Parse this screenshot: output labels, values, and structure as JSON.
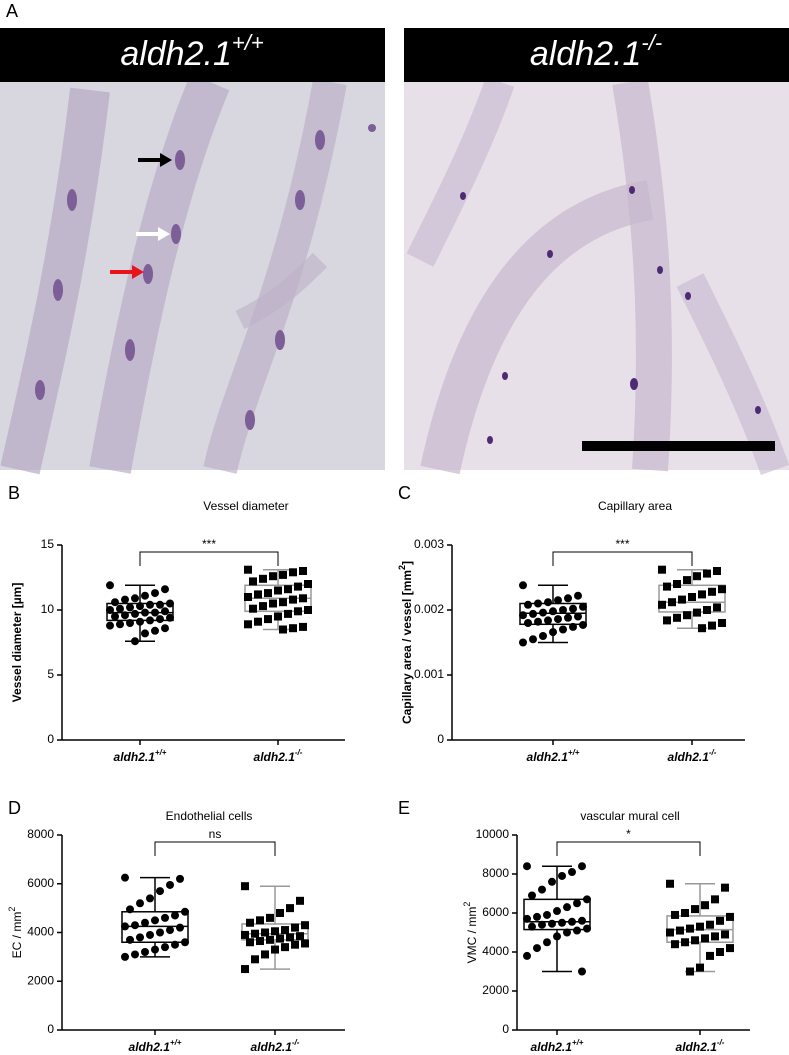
{
  "figure": {
    "panel_a": {
      "label": "A",
      "left_header": "aldh2.1",
      "left_header_sup": "+/+",
      "right_header": "aldh2.1",
      "right_header_sup": "-/-"
    }
  },
  "chart_data": [
    {
      "type": "box",
      "panel": "B",
      "title": "Vessel diameter",
      "ylabel": "Vessel diameter [µm]",
      "ylim": [
        0,
        15
      ],
      "yticks": [
        0,
        5,
        10,
        15
      ],
      "categories": [
        "aldh2.1",
        "aldh2.1"
      ],
      "category_sups": [
        "+/+",
        "-/-"
      ],
      "significance": "***",
      "series": [
        {
          "color": "#000000",
          "box_color": "#000000",
          "marker": "circle",
          "whisker_low": 7.6,
          "q1": 9.2,
          "median": 9.8,
          "q3": 10.5,
          "whisker_high": 11.9,
          "values": [
            11.9,
            11.6,
            11.3,
            11.1,
            10.9,
            10.8,
            10.6,
            10.5,
            10.4,
            10.4,
            10.3,
            10.2,
            10.1,
            10.0,
            9.9,
            9.8,
            9.8,
            9.7,
            9.6,
            9.5,
            9.4,
            9.3,
            9.2,
            9.1,
            9.0,
            8.9,
            8.8,
            8.6,
            8.4,
            8.2,
            7.6
          ]
        },
        {
          "color": "#000000",
          "box_color": "#999999",
          "marker": "square",
          "whisker_low": 8.5,
          "q1": 9.9,
          "median": 10.9,
          "q3": 11.9,
          "whisker_high": 13.1,
          "values": [
            13.1,
            13.0,
            12.9,
            12.7,
            12.6,
            12.4,
            12.2,
            12.0,
            11.8,
            11.6,
            11.5,
            11.3,
            11.2,
            11.0,
            10.9,
            10.8,
            10.6,
            10.5,
            10.3,
            10.1,
            10.0,
            9.9,
            9.7,
            9.5,
            9.3,
            9.1,
            8.9,
            8.7,
            8.6,
            8.5
          ]
        }
      ]
    },
    {
      "type": "box",
      "panel": "C",
      "title": "Capillary area",
      "ylabel": "Capillary area / vessel [mm",
      "ylabel_sup": "2",
      "ylabel_tail": "]",
      "ylim": [
        0,
        0.003
      ],
      "yticks": [
        0,
        0.001,
        0.002,
        0.003
      ],
      "categories": [
        "aldh2.1",
        "aldh2.1"
      ],
      "category_sups": [
        "+/+",
        "-/-"
      ],
      "significance": "***",
      "series": [
        {
          "color": "#000000",
          "box_color": "#000000",
          "marker": "circle",
          "whisker_low": 0.0015,
          "q1": 0.00178,
          "median": 0.00195,
          "q3": 0.0021,
          "whisker_high": 0.00238,
          "values": [
            0.00238,
            0.00222,
            0.00218,
            0.00215,
            0.00212,
            0.0021,
            0.00208,
            0.00205,
            0.00202,
            0.002,
            0.00198,
            0.00196,
            0.00194,
            0.00192,
            0.0019,
            0.00188,
            0.00186,
            0.00184,
            0.00182,
            0.0018,
            0.00177,
            0.00174,
            0.0017,
            0.00166,
            0.0016,
            0.00155,
            0.0015
          ]
        },
        {
          "color": "#000000",
          "box_color": "#999999",
          "marker": "square",
          "whisker_low": 0.00172,
          "q1": 0.00197,
          "median": 0.00212,
          "q3": 0.00238,
          "whisker_high": 0.00262,
          "values": [
            0.00262,
            0.0026,
            0.00256,
            0.00252,
            0.00246,
            0.0024,
            0.00236,
            0.00232,
            0.00228,
            0.00224,
            0.0022,
            0.00216,
            0.00212,
            0.00208,
            0.00204,
            0.002,
            0.00196,
            0.00192,
            0.00188,
            0.00184,
            0.0018,
            0.00176,
            0.00172
          ]
        }
      ]
    },
    {
      "type": "box",
      "panel": "D",
      "title": "Endothelial cells",
      "ylabel": "EC / mm",
      "ylabel_sup": "2",
      "ylim": [
        0,
        8000
      ],
      "yticks": [
        0,
        2000,
        4000,
        6000,
        8000
      ],
      "categories": [
        "aldh2.1",
        "aldh2.1"
      ],
      "category_sups": [
        "+/+",
        "-/-"
      ],
      "significance": "ns",
      "series": [
        {
          "color": "#000000",
          "box_color": "#000000",
          "marker": "circle",
          "whisker_low": 3000,
          "q1": 3600,
          "median": 4250,
          "q3": 4850,
          "whisker_high": 6250,
          "values": [
            6250,
            6200,
            5950,
            5700,
            5400,
            5200,
            4950,
            4850,
            4700,
            4600,
            4500,
            4400,
            4300,
            4250,
            4200,
            4100,
            4000,
            3900,
            3800,
            3700,
            3600,
            3500,
            3400,
            3300,
            3200,
            3100,
            3000
          ]
        },
        {
          "color": "#000000",
          "box_color": "#999999",
          "marker": "square",
          "whisker_low": 2500,
          "q1": 3700,
          "median": 3950,
          "q3": 4350,
          "whisker_high": 5900,
          "values": [
            5900,
            5300,
            5000,
            4800,
            4600,
            4500,
            4400,
            4300,
            4200,
            4100,
            4050,
            4000,
            3950,
            3900,
            3850,
            3800,
            3750,
            3700,
            3650,
            3600,
            3550,
            3500,
            3400,
            3300,
            3100,
            2900,
            2500
          ]
        }
      ]
    },
    {
      "type": "box",
      "panel": "E",
      "title": "vascular mural cell",
      "ylabel": "VMC / mm",
      "ylabel_sup": "2",
      "ylim": [
        0,
        10000
      ],
      "yticks": [
        0,
        2000,
        4000,
        6000,
        8000,
        10000
      ],
      "categories": [
        "aldh2.1",
        "aldh2.1"
      ],
      "category_sups": [
        "+/+",
        "-/-"
      ],
      "significance": "*",
      "series": [
        {
          "color": "#000000",
          "box_color": "#000000",
          "marker": "circle",
          "whisker_low": 3000,
          "q1": 5150,
          "median": 5550,
          "q3": 6700,
          "whisker_high": 8400,
          "values": [
            8400,
            8400,
            8100,
            7900,
            7600,
            7200,
            6900,
            6700,
            6500,
            6300,
            6100,
            5900,
            5800,
            5700,
            5600,
            5550,
            5500,
            5450,
            5400,
            5300,
            5200,
            5100,
            5000,
            4800,
            4500,
            4200,
            3800,
            3000
          ]
        },
        {
          "color": "#000000",
          "box_color": "#999999",
          "marker": "square",
          "whisker_low": 3000,
          "q1": 4500,
          "median": 5150,
          "q3": 5850,
          "whisker_high": 7500,
          "values": [
            7500,
            7300,
            6700,
            6400,
            6200,
            6000,
            5900,
            5800,
            5600,
            5400,
            5300,
            5200,
            5100,
            5000,
            4900,
            4800,
            4700,
            4600,
            4500,
            4400,
            4200,
            4000,
            3800,
            3200,
            3000
          ]
        }
      ]
    }
  ]
}
